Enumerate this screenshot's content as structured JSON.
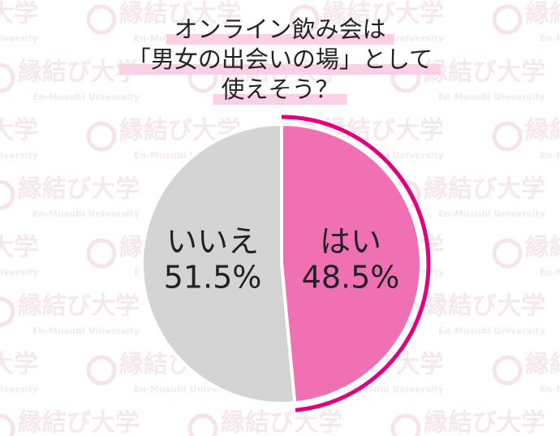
{
  "chart_data": {
    "type": "pie",
    "title": [
      "オンライン飲み会は",
      "「男女の出会いの場」として",
      "使えそう？"
    ],
    "categories": [
      "はい",
      "いいえ"
    ],
    "values": [
      48.5,
      51.5
    ],
    "value_labels": [
      "48.5%",
      "51.5%"
    ],
    "colors": [
      "#f070b4",
      "#d4d4d4"
    ],
    "accent": "#e3007f"
  },
  "watermark": {
    "text": "縁結び大学",
    "subtext": "En-Musubi University"
  }
}
